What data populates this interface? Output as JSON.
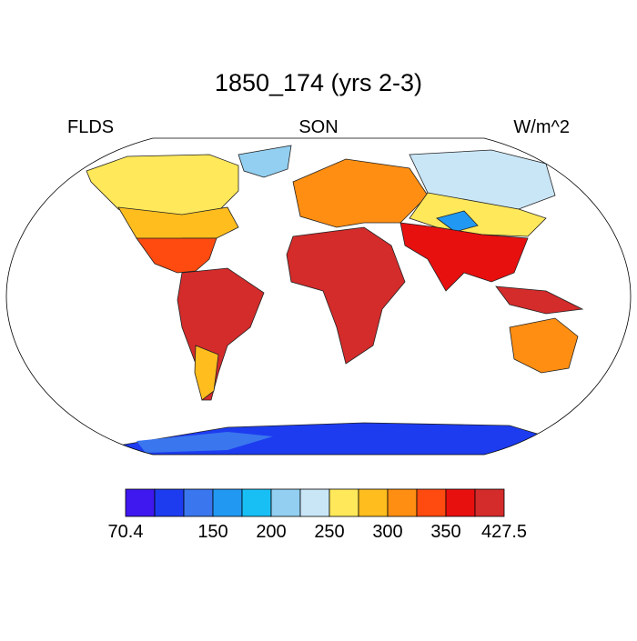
{
  "map": {
    "title": "1850_174 (yrs 2-3)",
    "left_label": "FLDS",
    "center_label": "SON",
    "right_label": "W/m^2",
    "colorbar": {
      "levels": [
        70.4,
        100,
        125,
        150,
        175,
        200,
        225,
        250,
        275,
        300,
        325,
        350,
        375,
        427.5
      ],
      "colors": [
        "#3f18f0",
        "#1d3cf0",
        "#3a76ee",
        "#2198f2",
        "#18bff5",
        "#92cff0",
        "#c9e6f7",
        "#ffe85a",
        "#ffbd1e",
        "#ff8e12",
        "#ff4a10",
        "#e80f0f",
        "#d42b2b"
      ],
      "ticks": [
        70.4,
        150,
        200,
        250,
        300,
        350,
        427.5
      ]
    }
  }
}
